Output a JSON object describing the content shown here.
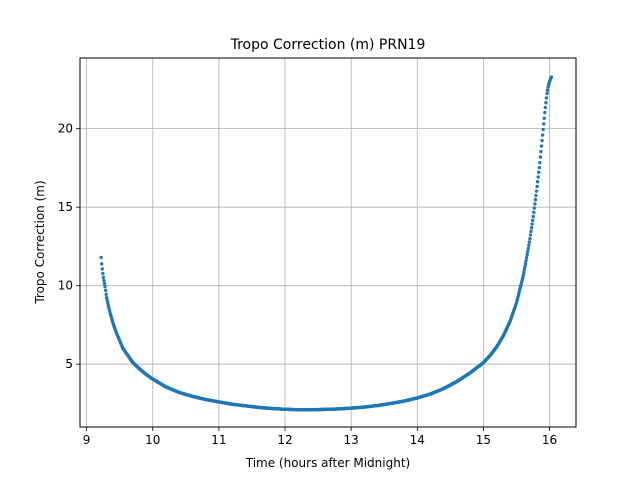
{
  "chart_data": {
    "type": "scatter",
    "title": "Tropo Correction (m) PRN19",
    "xlabel": "Time (hours after Midnight)",
    "ylabel": "Tropo Correction (m)",
    "xlim": [
      8.9,
      16.4
    ],
    "ylim": [
      1.0,
      24.5
    ],
    "xticks": [
      9,
      10,
      11,
      12,
      13,
      14,
      15,
      16
    ],
    "yticks": [
      5,
      10,
      15,
      20
    ],
    "grid": true,
    "legend": "none",
    "marker_color": "#1f77b4",
    "anchor_points": {
      "x": [
        9.22,
        9.23,
        9.25,
        9.28,
        9.3,
        9.33,
        9.36,
        9.4,
        9.45,
        9.5,
        9.55,
        9.6,
        9.7,
        9.8,
        9.9,
        10.0,
        10.2,
        10.4,
        10.6,
        10.8,
        11.0,
        11.2,
        11.4,
        11.6,
        11.8,
        12.0,
        12.2,
        12.4,
        12.6,
        12.8,
        13.0,
        13.2,
        13.4,
        13.6,
        13.8,
        14.0,
        14.2,
        14.4,
        14.6,
        14.8,
        15.0,
        15.1,
        15.2,
        15.3,
        15.4,
        15.5,
        15.6,
        15.65,
        15.7,
        15.75,
        15.8,
        15.85,
        15.9,
        15.93,
        15.96,
        15.98,
        16.0,
        16.02,
        16.03
      ],
      "y": [
        11.8,
        11.3,
        10.6,
        9.9,
        9.3,
        8.7,
        8.2,
        7.6,
        7.0,
        6.5,
        6.0,
        5.7,
        5.1,
        4.7,
        4.35,
        4.05,
        3.55,
        3.2,
        2.95,
        2.75,
        2.6,
        2.45,
        2.35,
        2.25,
        2.18,
        2.13,
        2.1,
        2.1,
        2.12,
        2.15,
        2.2,
        2.27,
        2.37,
        2.5,
        2.65,
        2.85,
        3.1,
        3.45,
        3.9,
        4.45,
        5.1,
        5.55,
        6.1,
        6.8,
        7.7,
        8.9,
        10.6,
        11.7,
        12.9,
        14.3,
        15.9,
        17.7,
        19.8,
        21.1,
        22.2,
        22.7,
        23.0,
        23.2,
        23.3
      ]
    }
  }
}
